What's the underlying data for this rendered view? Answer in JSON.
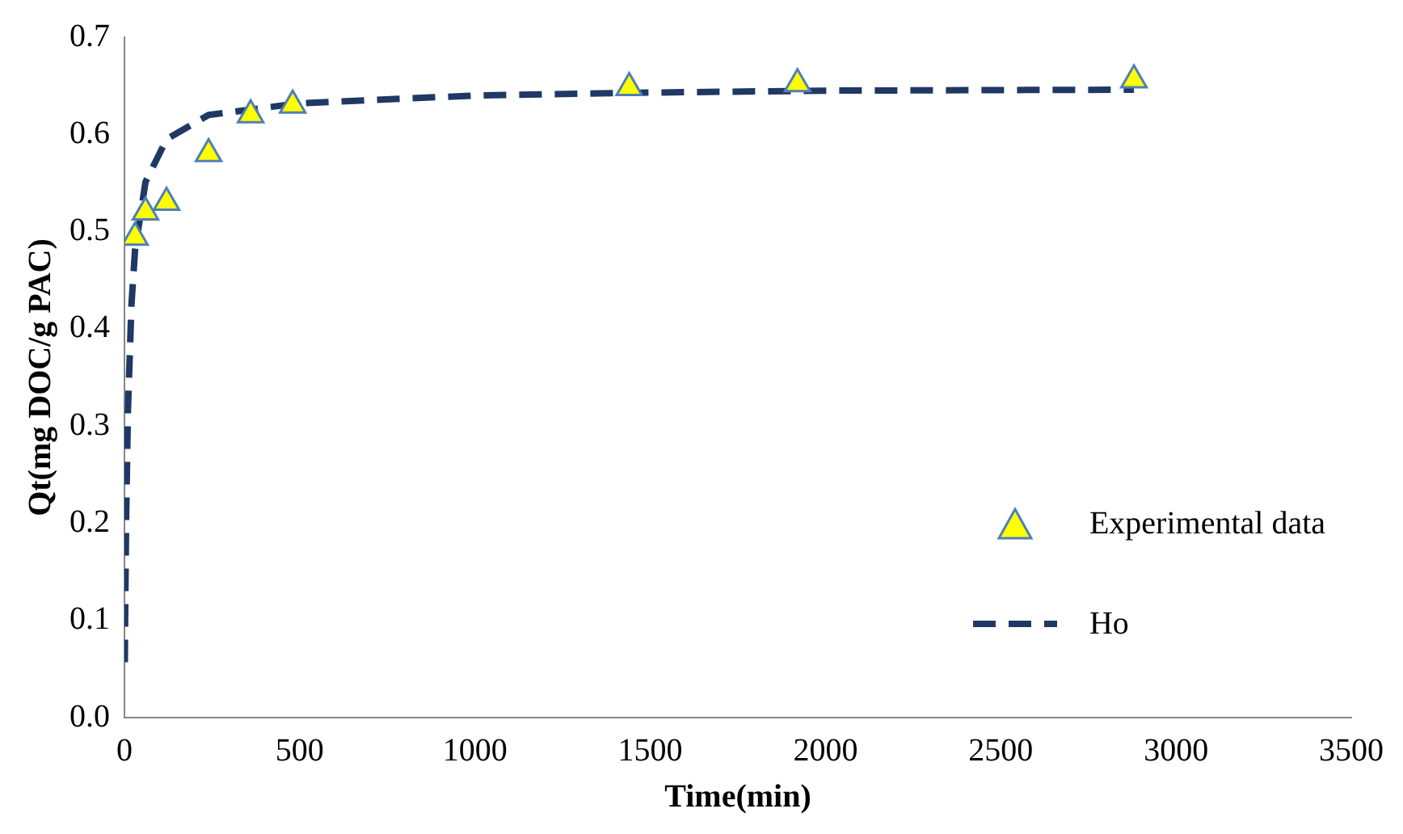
{
  "chart_data": {
    "type": "scatter",
    "xlabel": "Time(min)",
    "ylabel": "Qt(mg DOC/g PAC)",
    "xlim": [
      0,
      3500
    ],
    "xticks": [
      0,
      500,
      1000,
      1500,
      2000,
      2500,
      3000,
      3500
    ],
    "ylim": [
      0,
      0.7
    ],
    "yticks": [
      {
        "value": 0,
        "label": "0.0"
      },
      0.1,
      0.2,
      0.3,
      0.4,
      0.5,
      0.6,
      0.7
    ],
    "grid": false,
    "legend": "right",
    "series": [
      {
        "name": "Experimental data",
        "marker": "triangle",
        "color": "#ffff00",
        "x": [
          30,
          60,
          120,
          240,
          360,
          480,
          1440,
          1920,
          2880
        ],
        "values": [
          0.494,
          0.52,
          0.53,
          0.58,
          0.62,
          0.63,
          0.648,
          0.652,
          0.656
        ]
      },
      {
        "name": "Ho",
        "type": "line",
        "marker": "none",
        "line_style": "dashed",
        "color": "#1f3864",
        "x": [
          1,
          2,
          5,
          10,
          20,
          30,
          60,
          120,
          240,
          500,
          1000,
          1500,
          2000,
          2880
        ],
        "values": [
          0.057,
          0.104,
          0.21,
          0.317,
          0.425,
          0.48,
          0.551,
          0.595,
          0.62,
          0.632,
          0.64,
          0.643,
          0.645,
          0.646
        ]
      }
    ]
  }
}
